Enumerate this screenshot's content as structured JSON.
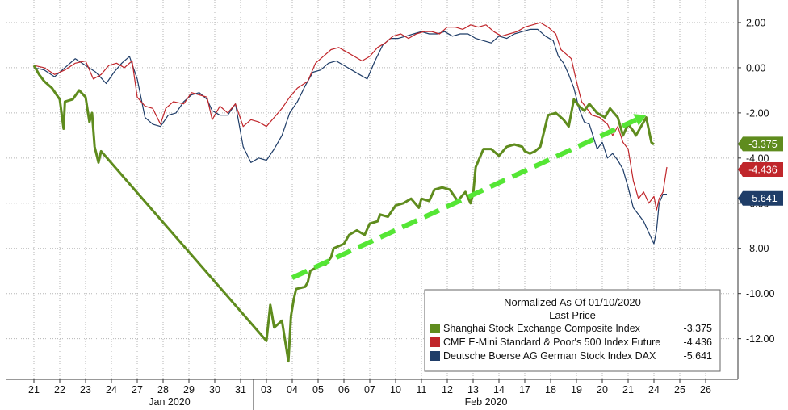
{
  "chart_data": {
    "type": "line",
    "title": "",
    "xlabel": "",
    "ylabel": "",
    "ylim": [
      -13.8,
      3.0
    ],
    "y_ticks": [
      "2.00",
      "0.00",
      "-2.00",
      "-4.00",
      "-6.00",
      "-8.00",
      "-10.00",
      "-12.00"
    ],
    "y_tick_values": [
      2,
      0,
      -2,
      -4,
      -6,
      -8,
      -10,
      -12
    ],
    "x_day_labels": [
      "21",
      "22",
      "23",
      "24",
      "27",
      "28",
      "29",
      "30",
      "31",
      "03",
      "04",
      "05",
      "06",
      "07",
      "10",
      "11",
      "12",
      "13",
      "14",
      "17",
      "18",
      "19",
      "20",
      "21",
      "24",
      "25",
      "26"
    ],
    "x_month_labels": [
      "Jan 2020",
      "Feb 2020"
    ],
    "grid": true,
    "legend": {
      "title": "Normalized As Of 01/10/2020",
      "subtitle": "Last Price",
      "placement": "bottom-right",
      "entries": [
        {
          "name": "Shanghai Stock Exchange Composite Index",
          "value": "-3.375"
        },
        {
          "name": "CME E-Mini Standard & Poor's 500 Index Future",
          "value": "-4.436"
        },
        {
          "name": "Deutsche Boerse AG German Stock Index DAX",
          "value": "-5.641"
        }
      ]
    },
    "last_value_tags": [
      "-3.375",
      "-4.436",
      "-5.641"
    ],
    "series": [
      {
        "name": "Shanghai Stock Exchange Composite Index",
        "color": "#5f8c1e",
        "points": [
          [
            0.0,
            0.1
          ],
          [
            0.2,
            -0.3
          ],
          [
            0.4,
            -0.6
          ],
          [
            0.7,
            -0.9
          ],
          [
            1.0,
            -1.4
          ],
          [
            1.15,
            -2.7
          ],
          [
            1.2,
            -1.5
          ],
          [
            1.5,
            -1.4
          ],
          [
            1.75,
            -1.0
          ],
          [
            2.0,
            -1.3
          ],
          [
            2.15,
            -2.4
          ],
          [
            2.25,
            -2.0
          ],
          [
            2.35,
            -3.5
          ],
          [
            2.5,
            -4.2
          ],
          [
            2.6,
            -3.7
          ],
          [
            9.0,
            -12.1
          ],
          [
            9.15,
            -10.5
          ],
          [
            9.3,
            -11.5
          ],
          [
            9.6,
            -11.2
          ],
          [
            9.85,
            -13.0
          ],
          [
            9.95,
            -11.0
          ],
          [
            10.05,
            -10.3
          ],
          [
            10.15,
            -9.8
          ],
          [
            10.5,
            -9.7
          ],
          [
            10.6,
            -9.5
          ],
          [
            10.7,
            -9.0
          ],
          [
            11.0,
            -8.8
          ],
          [
            11.3,
            -8.7
          ],
          [
            11.5,
            -8.4
          ],
          [
            11.6,
            -8.0
          ],
          [
            12.0,
            -7.8
          ],
          [
            12.2,
            -7.4
          ],
          [
            12.5,
            -7.2
          ],
          [
            12.8,
            -7.4
          ],
          [
            13.0,
            -6.9
          ],
          [
            13.3,
            -6.8
          ],
          [
            13.4,
            -6.5
          ],
          [
            13.7,
            -6.6
          ],
          [
            14.0,
            -6.1
          ],
          [
            14.3,
            -6.0
          ],
          [
            14.6,
            -5.8
          ],
          [
            14.9,
            -6.2
          ],
          [
            15.0,
            -5.8
          ],
          [
            15.3,
            -5.9
          ],
          [
            15.5,
            -5.4
          ],
          [
            15.8,
            -5.3
          ],
          [
            16.1,
            -5.4
          ],
          [
            16.4,
            -5.9
          ],
          [
            16.7,
            -5.5
          ],
          [
            16.9,
            -6.0
          ],
          [
            17.0,
            -5.6
          ],
          [
            17.1,
            -4.4
          ],
          [
            17.4,
            -3.6
          ],
          [
            17.7,
            -3.6
          ],
          [
            18.0,
            -3.9
          ],
          [
            18.3,
            -3.5
          ],
          [
            18.6,
            -3.4
          ],
          [
            18.9,
            -3.5
          ],
          [
            19.0,
            -3.7
          ],
          [
            19.2,
            -3.8
          ],
          [
            19.4,
            -3.7
          ],
          [
            19.6,
            -3.5
          ],
          [
            19.9,
            -2.1
          ],
          [
            20.2,
            -2.0
          ],
          [
            20.5,
            -2.3
          ],
          [
            20.7,
            -2.6
          ],
          [
            20.9,
            -1.4
          ],
          [
            21.1,
            -1.7
          ],
          [
            21.3,
            -1.9
          ],
          [
            21.5,
            -1.6
          ],
          [
            21.8,
            -2.0
          ],
          [
            22.1,
            -2.2
          ],
          [
            22.3,
            -1.8
          ],
          [
            22.6,
            -2.2
          ],
          [
            22.8,
            -3.0
          ],
          [
            23.0,
            -2.5
          ],
          [
            23.2,
            -2.8
          ],
          [
            23.3,
            -3.0
          ],
          [
            23.5,
            -2.6
          ],
          [
            23.7,
            -2.2
          ],
          [
            23.9,
            -3.3
          ],
          [
            24.0,
            -3.4
          ]
        ]
      },
      {
        "name": "CME E-Mini Standard & Poor's 500 Index Future",
        "color": "#c0262b",
        "points": [
          [
            0.0,
            0.1
          ],
          [
            0.4,
            0.0
          ],
          [
            0.8,
            -0.3
          ],
          [
            1.2,
            -0.1
          ],
          [
            1.6,
            0.2
          ],
          [
            2.0,
            0.3
          ],
          [
            2.3,
            -0.5
          ],
          [
            2.6,
            -0.3
          ],
          [
            2.9,
            0.1
          ],
          [
            3.2,
            0.2
          ],
          [
            3.5,
            0.0
          ],
          [
            3.8,
            0.3
          ],
          [
            4.0,
            -1.3
          ],
          [
            4.3,
            -1.7
          ],
          [
            4.6,
            -1.8
          ],
          [
            4.9,
            -2.5
          ],
          [
            5.1,
            -1.8
          ],
          [
            5.4,
            -1.5
          ],
          [
            5.8,
            -1.6
          ],
          [
            6.1,
            -1.1
          ],
          [
            6.4,
            -1.2
          ],
          [
            6.7,
            -1.3
          ],
          [
            6.9,
            -2.3
          ],
          [
            7.2,
            -1.7
          ],
          [
            7.5,
            -2.0
          ],
          [
            7.8,
            -1.6
          ],
          [
            8.1,
            -2.6
          ],
          [
            8.4,
            -2.3
          ],
          [
            8.7,
            -2.4
          ],
          [
            9.0,
            -2.6
          ],
          [
            9.3,
            -2.2
          ],
          [
            9.6,
            -1.8
          ],
          [
            9.9,
            -1.3
          ],
          [
            10.2,
            -0.9
          ],
          [
            10.6,
            -0.6
          ],
          [
            10.9,
            0.2
          ],
          [
            11.2,
            0.5
          ],
          [
            11.5,
            0.8
          ],
          [
            11.8,
            0.9
          ],
          [
            12.1,
            0.7
          ],
          [
            12.4,
            0.5
          ],
          [
            12.7,
            0.3
          ],
          [
            13.0,
            0.5
          ],
          [
            13.3,
            0.9
          ],
          [
            13.6,
            1.1
          ],
          [
            13.9,
            1.4
          ],
          [
            14.2,
            1.5
          ],
          [
            14.5,
            1.3
          ],
          [
            14.8,
            1.5
          ],
          [
            15.1,
            1.6
          ],
          [
            15.4,
            1.6
          ],
          [
            15.7,
            1.5
          ],
          [
            16.0,
            1.8
          ],
          [
            16.3,
            1.8
          ],
          [
            16.6,
            1.7
          ],
          [
            16.9,
            1.9
          ],
          [
            17.2,
            1.8
          ],
          [
            17.5,
            1.9
          ],
          [
            17.8,
            1.6
          ],
          [
            18.1,
            1.4
          ],
          [
            18.4,
            1.5
          ],
          [
            18.7,
            1.6
          ],
          [
            19.0,
            1.8
          ],
          [
            19.3,
            1.9
          ],
          [
            19.6,
            2.0
          ],
          [
            19.9,
            1.8
          ],
          [
            20.2,
            1.5
          ],
          [
            20.4,
            0.8
          ],
          [
            20.6,
            0.6
          ],
          [
            20.8,
            0.4
          ],
          [
            21.0,
            -0.6
          ],
          [
            21.2,
            -1.5
          ],
          [
            21.4,
            -1.8
          ],
          [
            21.6,
            -2.1
          ],
          [
            21.9,
            -2.2
          ],
          [
            22.2,
            -2.5
          ],
          [
            22.4,
            -3.0
          ],
          [
            22.6,
            -2.6
          ],
          [
            22.8,
            -3.3
          ],
          [
            23.0,
            -3.6
          ],
          [
            23.2,
            -5.0
          ],
          [
            23.4,
            -5.8
          ],
          [
            23.6,
            -5.5
          ],
          [
            23.8,
            -6.0
          ],
          [
            24.0,
            -5.7
          ],
          [
            24.1,
            -6.3
          ],
          [
            24.2,
            -5.8
          ],
          [
            24.35,
            -5.5
          ],
          [
            24.5,
            -4.4
          ]
        ]
      },
      {
        "name": "Deutsche Boerse AG German Stock Index DAX",
        "color": "#1f3d68",
        "points": [
          [
            0.0,
            0.0
          ],
          [
            0.4,
            -0.1
          ],
          [
            0.8,
            -0.4
          ],
          [
            1.2,
            0.0
          ],
          [
            1.6,
            0.4
          ],
          [
            2.0,
            0.1
          ],
          [
            2.4,
            -0.2
          ],
          [
            2.8,
            -0.7
          ],
          [
            3.1,
            -0.2
          ],
          [
            3.4,
            0.2
          ],
          [
            3.7,
            0.5
          ],
          [
            4.0,
            -0.5
          ],
          [
            4.3,
            -2.2
          ],
          [
            4.6,
            -2.5
          ],
          [
            4.9,
            -2.6
          ],
          [
            5.2,
            -2.1
          ],
          [
            5.5,
            -2.0
          ],
          [
            5.8,
            -1.5
          ],
          [
            6.1,
            -1.2
          ],
          [
            6.4,
            -1.1
          ],
          [
            6.7,
            -1.4
          ],
          [
            6.9,
            -1.9
          ],
          [
            7.2,
            -2.1
          ],
          [
            7.5,
            -2.1
          ],
          [
            7.8,
            -1.6
          ],
          [
            8.1,
            -3.5
          ],
          [
            8.4,
            -4.2
          ],
          [
            8.7,
            -4.0
          ],
          [
            9.0,
            -4.1
          ],
          [
            9.3,
            -3.6
          ],
          [
            9.6,
            -3.0
          ],
          [
            9.9,
            -2.0
          ],
          [
            10.2,
            -1.5
          ],
          [
            10.5,
            -0.8
          ],
          [
            10.8,
            -0.2
          ],
          [
            11.1,
            -0.1
          ],
          [
            11.4,
            0.2
          ],
          [
            11.7,
            0.3
          ],
          [
            12.0,
            0.1
          ],
          [
            12.3,
            -0.1
          ],
          [
            12.6,
            -0.3
          ],
          [
            12.9,
            -0.5
          ],
          [
            13.2,
            0.3
          ],
          [
            13.5,
            1.0
          ],
          [
            13.8,
            1.3
          ],
          [
            14.1,
            1.3
          ],
          [
            14.4,
            1.4
          ],
          [
            14.7,
            1.5
          ],
          [
            15.0,
            1.6
          ],
          [
            15.3,
            1.5
          ],
          [
            15.6,
            1.5
          ],
          [
            15.9,
            1.6
          ],
          [
            16.2,
            1.4
          ],
          [
            16.5,
            1.5
          ],
          [
            16.8,
            1.5
          ],
          [
            17.1,
            1.3
          ],
          [
            17.4,
            1.2
          ],
          [
            17.7,
            1.1
          ],
          [
            18.0,
            1.4
          ],
          [
            18.3,
            1.3
          ],
          [
            18.6,
            1.5
          ],
          [
            18.9,
            1.6
          ],
          [
            19.2,
            1.7
          ],
          [
            19.5,
            1.7
          ],
          [
            19.8,
            1.4
          ],
          [
            20.1,
            1.2
          ],
          [
            20.3,
            0.5
          ],
          [
            20.5,
            0.2
          ],
          [
            20.7,
            -0.3
          ],
          [
            20.9,
            -0.9
          ],
          [
            21.1,
            -1.8
          ],
          [
            21.3,
            -2.4
          ],
          [
            21.5,
            -2.5
          ],
          [
            21.8,
            -3.6
          ],
          [
            22.0,
            -3.3
          ],
          [
            22.2,
            -4.0
          ],
          [
            22.4,
            -3.8
          ],
          [
            22.6,
            -4.1
          ],
          [
            22.8,
            -4.5
          ],
          [
            23.0,
            -5.3
          ],
          [
            23.2,
            -6.2
          ],
          [
            23.4,
            -6.5
          ],
          [
            23.6,
            -6.8
          ],
          [
            23.8,
            -7.3
          ],
          [
            24.0,
            -7.8
          ],
          [
            24.1,
            -7.2
          ],
          [
            24.2,
            -6.0
          ],
          [
            24.35,
            -5.6
          ],
          [
            24.5,
            -5.6
          ]
        ]
      }
    ],
    "trendline": {
      "color": "#55e635",
      "points": [
        [
          10.0,
          -9.3
        ],
        [
          23.7,
          -2.1
        ]
      ]
    }
  }
}
